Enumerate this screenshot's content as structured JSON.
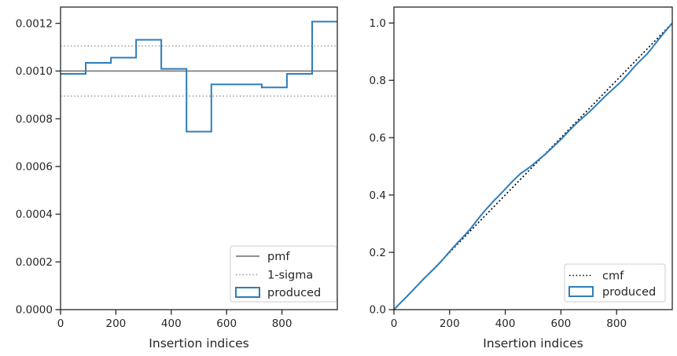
{
  "colors": {
    "produced": "#2e7ebc",
    "pmf": "#7f7f7f",
    "sigma": "#999999",
    "cmf": "#000000",
    "axis": "#262626",
    "text": "#262626",
    "legend_border": "#cccccc",
    "background": "#ffffff"
  },
  "chart_data": [
    {
      "name": "pmf",
      "type": "step-histogram",
      "title": "",
      "xlabel": "Insertion indices",
      "ylabel": "",
      "xlim": [
        0,
        1000
      ],
      "ylim": [
        0,
        0.001268
      ],
      "xticks": [
        0,
        200,
        400,
        600,
        800
      ],
      "ytick_values": [
        0,
        0.0002,
        0.0004,
        0.0006,
        0.0008,
        0.001,
        0.0012
      ],
      "ytick_labels": [
        "0.0000",
        "0.0002",
        "0.0004",
        "0.0006",
        "0.0008",
        "0.0010",
        "0.0012"
      ],
      "reference_pmf": 0.001,
      "sigma_band": [
        0.000895,
        0.001105
      ],
      "bin_edges": [
        0,
        91,
        182,
        273,
        364,
        455,
        545,
        636,
        727,
        818,
        909,
        1000
      ],
      "bin_values": [
        0.000988,
        0.001034,
        0.001056,
        0.001131,
        0.001009,
        0.000746,
        0.000944,
        0.000944,
        0.000931,
        0.000988,
        0.001207
      ],
      "legend": [
        {
          "label": "pmf",
          "style": "solid-gray"
        },
        {
          "label": "1-sigma",
          "style": "dotted-gray"
        },
        {
          "label": "produced",
          "style": "blue-rect"
        }
      ],
      "legend_position": "lower right",
      "grid": false
    },
    {
      "name": "cmf",
      "type": "line",
      "title": "",
      "xlabel": "Insertion indices",
      "ylabel": "",
      "xlim": [
        0,
        1000
      ],
      "ylim": [
        0,
        1.0557
      ],
      "xticks": [
        0,
        200,
        400,
        600,
        800
      ],
      "ytick_values": [
        0,
        0.2,
        0.4,
        0.6,
        0.8,
        1.0
      ],
      "ytick_labels": [
        "0.0",
        "0.2",
        "0.4",
        "0.6",
        "0.8",
        "1.0"
      ],
      "cmf_reference": [
        [
          0,
          0
        ],
        [
          1000,
          1.0
        ]
      ],
      "produced_points": [
        [
          0,
          0
        ],
        [
          91,
          0.0901
        ],
        [
          182,
          0.1843
        ],
        [
          273,
          0.2806
        ],
        [
          364,
          0.3837
        ],
        [
          455,
          0.4757
        ],
        [
          545,
          0.543
        ],
        [
          636,
          0.629
        ],
        [
          727,
          0.7151
        ],
        [
          818,
          0.8
        ],
        [
          909,
          0.89
        ],
        [
          1000,
          1.0
        ]
      ],
      "legend": [
        {
          "label": "cmf",
          "style": "dotted-black"
        },
        {
          "label": "produced",
          "style": "blue-rect"
        }
      ],
      "legend_position": "lower right",
      "grid": false
    }
  ]
}
